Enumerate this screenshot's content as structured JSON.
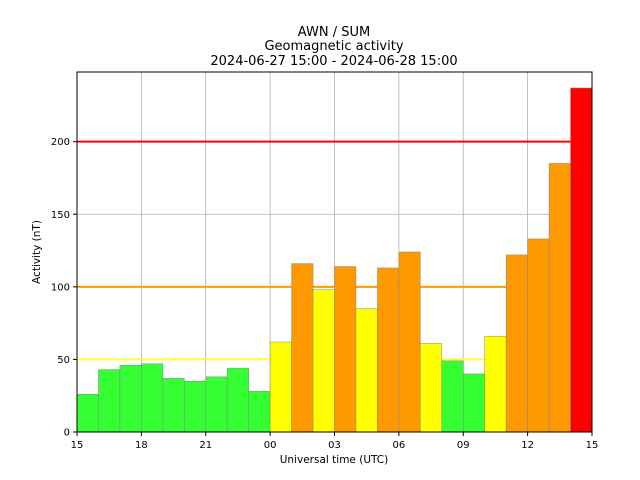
{
  "chart_data": {
    "type": "bar",
    "title": [
      "AWN / SUM",
      "Geomagnetic activity",
      "2024-06-27 15:00 - 2024-06-28 15:00"
    ],
    "xlabel": "Universal time (UTC)",
    "ylabel": "Activity (nT)",
    "xlim": [
      0,
      24
    ],
    "ylim": [
      0,
      248
    ],
    "x_ticks": [
      {
        "pos": 0,
        "label": "15"
      },
      {
        "pos": 3,
        "label": "18"
      },
      {
        "pos": 6,
        "label": "21"
      },
      {
        "pos": 9,
        "label": "00"
      },
      {
        "pos": 12,
        "label": "03"
      },
      {
        "pos": 15,
        "label": "06"
      },
      {
        "pos": 18,
        "label": "09"
      },
      {
        "pos": 21,
        "label": "12"
      },
      {
        "pos": 24,
        "label": "15"
      }
    ],
    "y_ticks": [
      0,
      50,
      100,
      150,
      200
    ],
    "grid": true,
    "values": [
      26,
      43,
      46,
      47,
      37,
      35,
      38,
      44,
      28,
      62,
      116,
      98,
      114,
      85,
      113,
      124,
      61,
      49,
      40,
      66,
      122,
      133,
      185,
      237
    ],
    "thresholds": [
      {
        "value": 50,
        "color": "#ffff33"
      },
      {
        "value": 100,
        "color": "#ff9900"
      },
      {
        "value": 200,
        "color": "#ff0000"
      }
    ],
    "bar_colors": {
      "low": "#33ff33",
      "moderate": "#ffff00",
      "high": "#ff9900",
      "severe": "#ff0000"
    }
  }
}
